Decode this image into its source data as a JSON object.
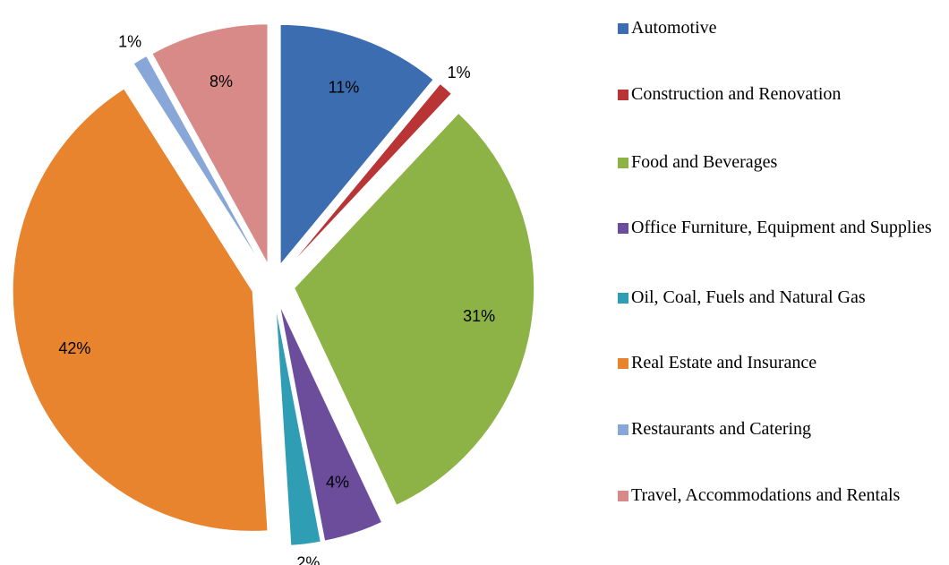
{
  "chart_data": {
    "type": "pie",
    "categories": [
      "Automotive",
      "Construction and Renovation",
      "Food and Beverages",
      "Office Furniture, Equipment and Supplies",
      "Oil, Coal, Fuels and Natural Gas",
      "Real Estate and Insurance",
      "Restaurants and Catering",
      "Travel, Accommodations and Rentals"
    ],
    "values": [
      11,
      1,
      31,
      4,
      2,
      42,
      1,
      8
    ],
    "value_labels": [
      "11%",
      "1%",
      "31%",
      "4%",
      "2%",
      "42%",
      "1%",
      "8%"
    ],
    "colors": [
      "#3b6db0",
      "#b93535",
      "#8db246",
      "#6b4d9c",
      "#2f9db3",
      "#e8832e",
      "#88a7d8",
      "#d88a89"
    ],
    "legend": "right"
  }
}
